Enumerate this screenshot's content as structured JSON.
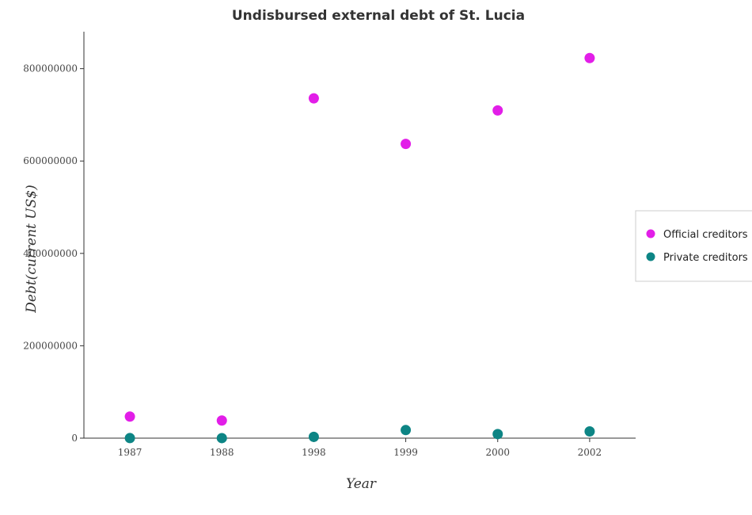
{
  "chart_data": {
    "type": "scatter",
    "title": "Undisbursed external debt of St. Lucia",
    "xlabel": "Year",
    "ylabel": "Debt(current US$)",
    "categories": [
      "1987",
      "1988",
      "1998",
      "1999",
      "2000",
      "2002"
    ],
    "ylim": [
      0,
      880000000
    ],
    "yticks": [
      0,
      200000000,
      400000000,
      600000000,
      800000000
    ],
    "ytick_labels": [
      "0",
      "200000000",
      "400000000",
      "600000000",
      "800000000"
    ],
    "grid": false,
    "legend_position": "right",
    "series": [
      {
        "name": "Official creditors",
        "color": "#e21ee8",
        "values": [
          46800000,
          38200000,
          735700000,
          637000000,
          709500000,
          823000000
        ]
      },
      {
        "name": "Private creditors",
        "color": "#0d8585",
        "values": [
          120000,
          100000,
          2800000,
          17500000,
          8800000,
          14600000
        ]
      }
    ]
  }
}
